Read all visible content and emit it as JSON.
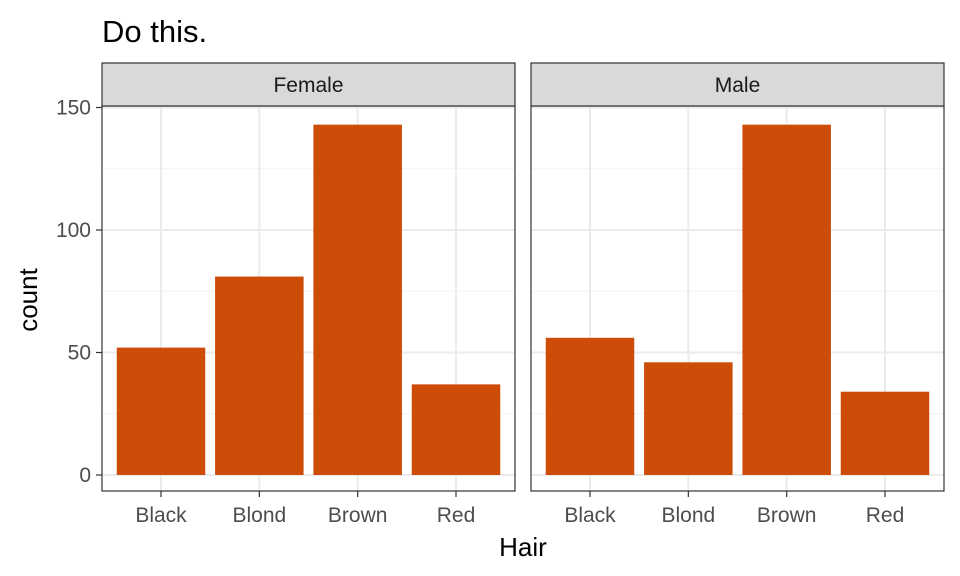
{
  "chart_data": {
    "type": "bar",
    "title": "Do this.",
    "xlabel": "Hair",
    "ylabel": "count",
    "ylim": [
      0,
      168
    ],
    "yticks": [
      0,
      50,
      100,
      150
    ],
    "categories": [
      "Black",
      "Blond",
      "Brown",
      "Red"
    ],
    "facets": [
      {
        "label": "Female",
        "values": [
          52,
          81,
          143,
          37
        ]
      },
      {
        "label": "Male",
        "values": [
          56,
          46,
          143,
          34
        ]
      }
    ],
    "bar_color": "#CC4C08",
    "grid": true,
    "legend": "none"
  }
}
